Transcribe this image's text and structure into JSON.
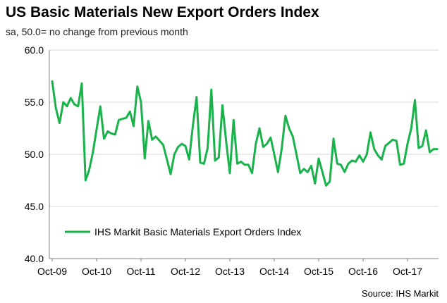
{
  "chart_data": {
    "type": "line",
    "title": "US Basic Materials New Export Orders Index",
    "subtitle": "sa, 50.0= no change from previous month",
    "source": "Source: IHS Markit",
    "ylim": [
      40,
      60
    ],
    "yticks": [
      "60.0",
      "55.0",
      "50.0",
      "45.0",
      "40.0"
    ],
    "ytick_values": [
      60,
      55,
      50,
      45,
      40
    ],
    "xtick_labels": [
      "Oct-09",
      "Oct-10",
      "Oct-11",
      "Oct-12",
      "Oct-13",
      "Oct-14",
      "Oct-15",
      "Oct-16",
      "Oct-17"
    ],
    "x_start": "2009-10",
    "grid": "horizontal",
    "legend_position": "bottom-left",
    "series": [
      {
        "name": "IHS Markit Basic Materials Export Orders Index",
        "color": "#19b24b",
        "values": [
          57.0,
          54.4,
          53.0,
          55.0,
          54.6,
          55.4,
          54.8,
          54.6,
          56.8,
          47.5,
          48.5,
          50.2,
          52.4,
          54.6,
          51.5,
          52.2,
          52.0,
          51.9,
          53.3,
          53.4,
          53.5,
          54.1,
          52.7,
          56.5,
          55.0,
          49.6,
          53.2,
          51.4,
          51.7,
          51.3,
          50.9,
          49.5,
          48.1,
          50.0,
          50.7,
          51.0,
          50.8,
          49.5,
          52.7,
          55.5,
          49.2,
          49.1,
          50.6,
          56.2,
          49.4,
          49.7,
          54.7,
          51.2,
          48.2,
          53.3,
          49.1,
          49.3,
          49.0,
          49.0,
          48.2,
          51.0,
          52.5,
          50.7,
          51.0,
          51.6,
          50.0,
          48.3,
          50.5,
          53.7,
          52.5,
          51.7,
          50.0,
          48.2,
          48.6,
          48.3,
          48.9,
          47.2,
          49.6,
          48.3,
          47.0,
          47.4,
          51.5,
          49.1,
          49.0,
          48.3,
          49.1,
          49.4,
          49.3,
          49.9,
          49.3,
          50.0,
          52.1,
          50.5,
          49.9,
          49.5,
          50.8,
          51.1,
          51.4,
          51.3,
          49.0,
          49.1,
          51.0,
          52.5,
          55.2,
          50.6,
          50.8,
          52.3,
          50.2,
          50.5,
          50.5
        ]
      }
    ]
  }
}
